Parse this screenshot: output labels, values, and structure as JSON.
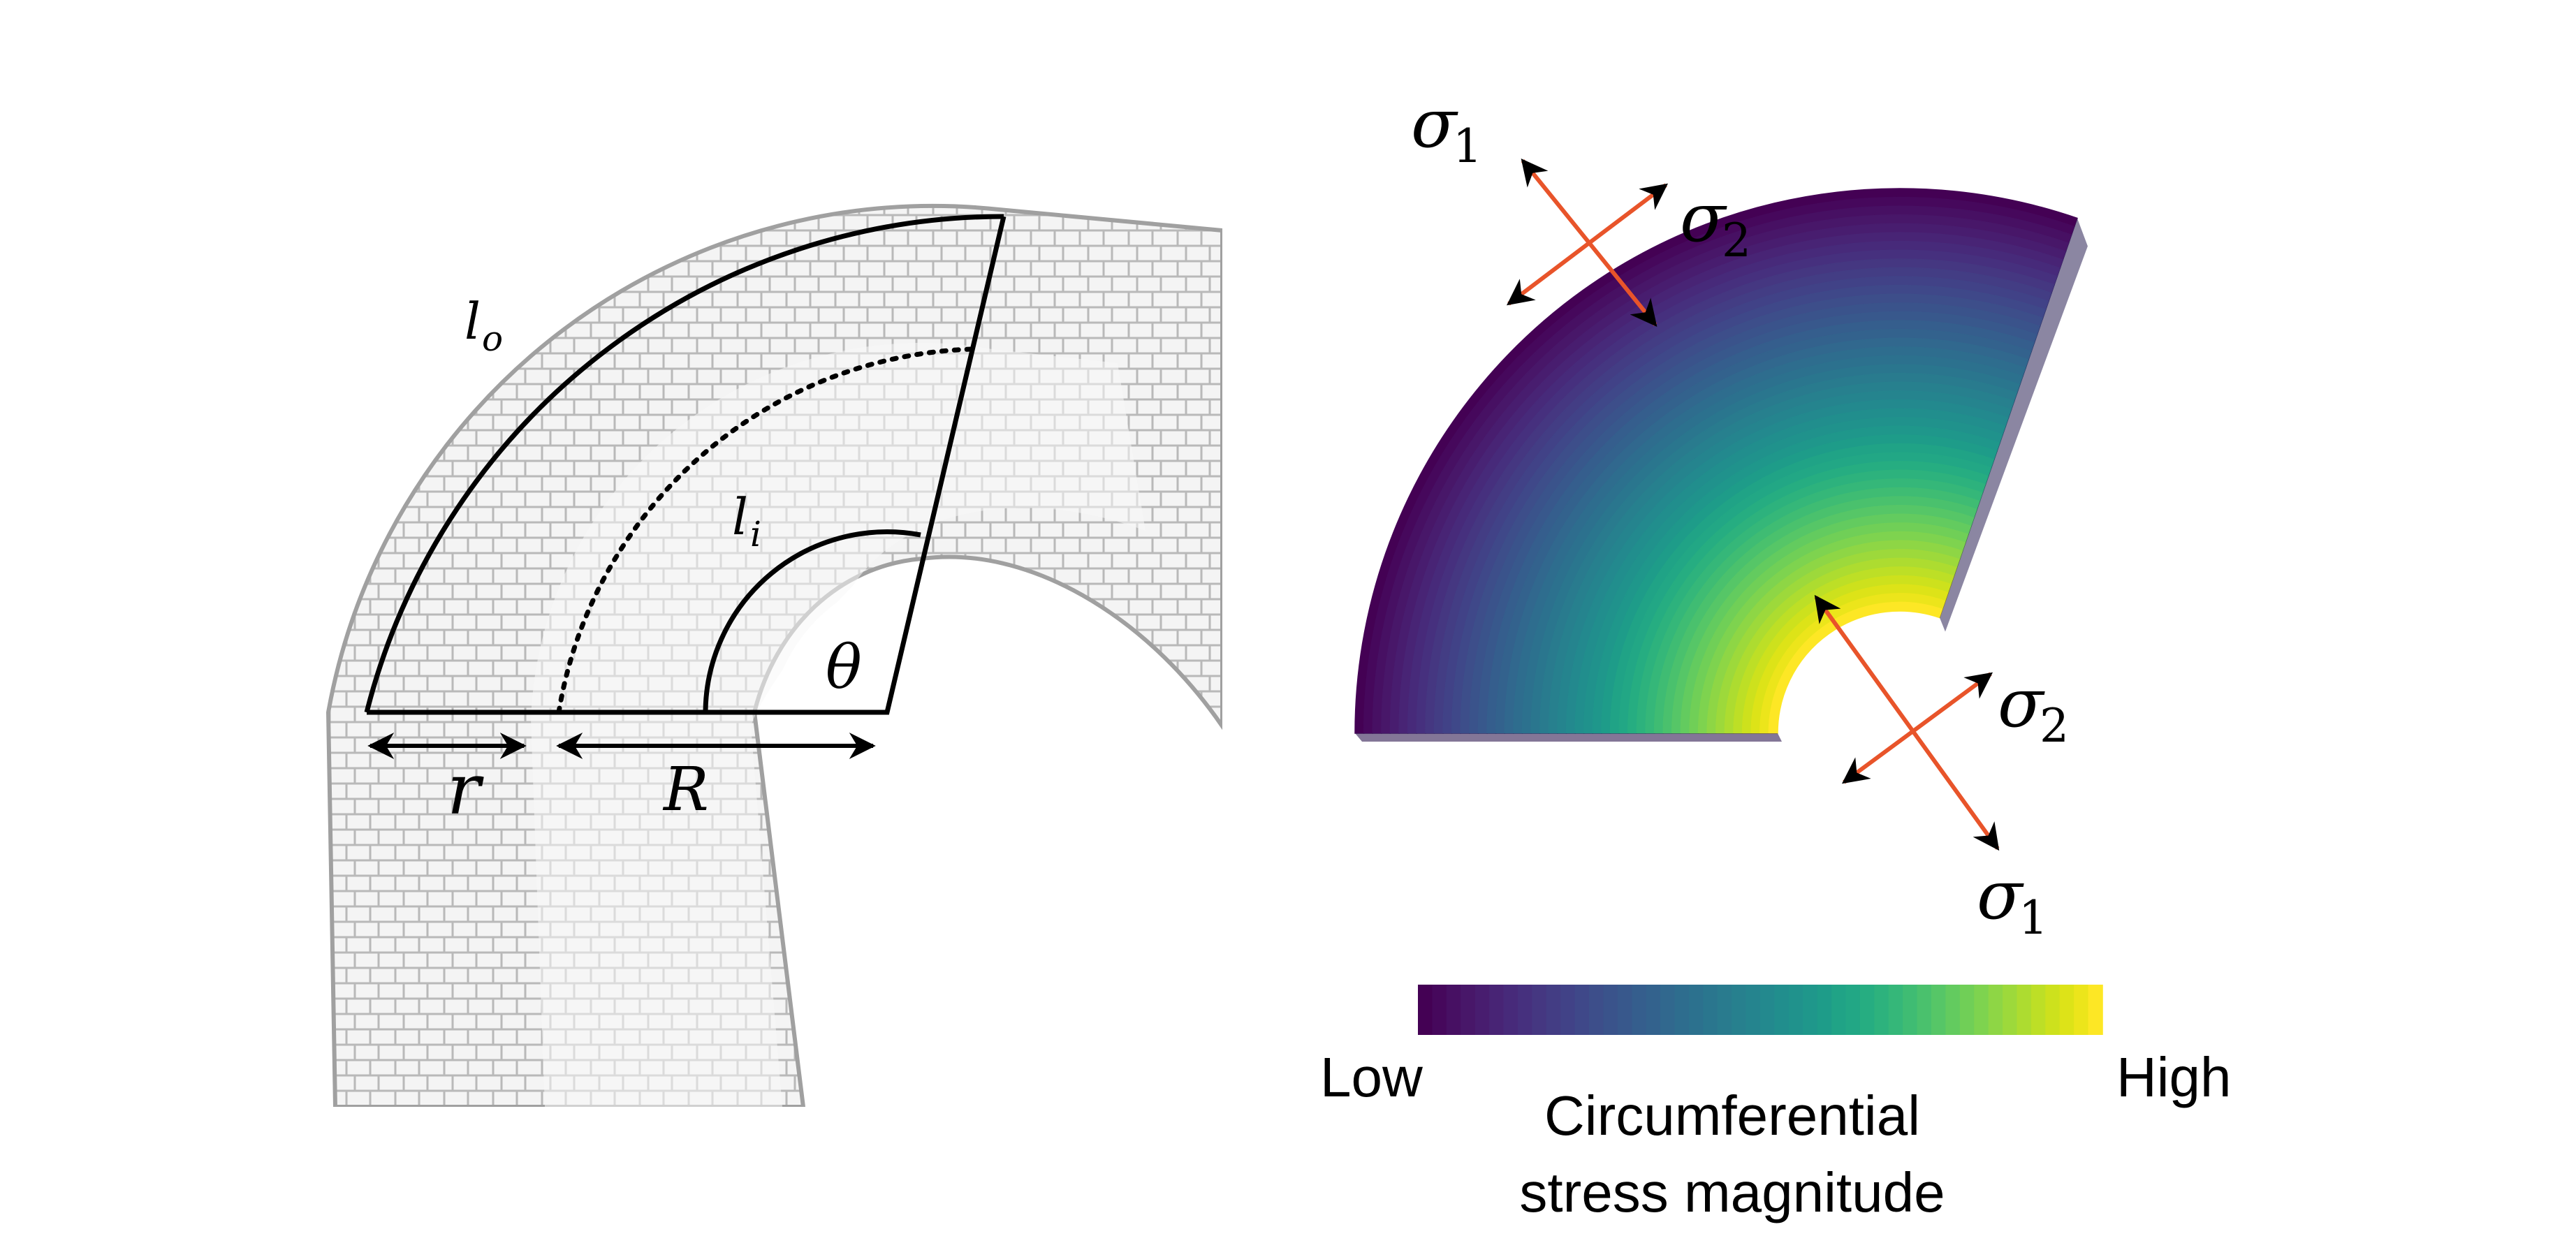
{
  "left_panel": {
    "labels": {
      "outer_arc": "l",
      "outer_arc_sub": "o",
      "inner_arc": "l",
      "inner_arc_sub": "i",
      "angle": "θ",
      "small_r": "r",
      "big_R": "R"
    }
  },
  "right_panel": {
    "stress_top": {
      "sigma1": "σ",
      "sigma1_sub": "1",
      "sigma2": "σ",
      "sigma2_sub": "2"
    },
    "stress_bottom": {
      "sigma1": "σ",
      "sigma1_sub": "1",
      "sigma2": "σ",
      "sigma2_sub": "2"
    },
    "colorbar": {
      "low_label": "Low",
      "high_label": "High",
      "title_line1": "Circumferential",
      "title_line2": "stress magnitude",
      "colors": [
        "#440154",
        "#46085c",
        "#471063",
        "#481769",
        "#481d6f",
        "#482475",
        "#472a7a",
        "#46307e",
        "#453781",
        "#433d84",
        "#414287",
        "#3f4889",
        "#3d4e8a",
        "#3a538b",
        "#38588c",
        "#355e8d",
        "#33628d",
        "#31688e",
        "#2e6d8e",
        "#2c718e",
        "#2a768e",
        "#297b8e",
        "#27808e",
        "#25848e",
        "#23898e",
        "#218e8d",
        "#20928c",
        "#1f978b",
        "#1e9c89",
        "#20a386",
        "#22a785",
        "#26ad81",
        "#2db27d",
        "#35b779",
        "#3fbc73",
        "#4ac16d",
        "#56c667",
        "#63cb5f",
        "#70cf57",
        "#7ed34f",
        "#8ed645",
        "#9dd93b",
        "#addc30",
        "#bddf26",
        "#cde11d",
        "#dde318",
        "#ece51b",
        "#fde725"
      ]
    },
    "arrow_color": "#e8542a"
  }
}
